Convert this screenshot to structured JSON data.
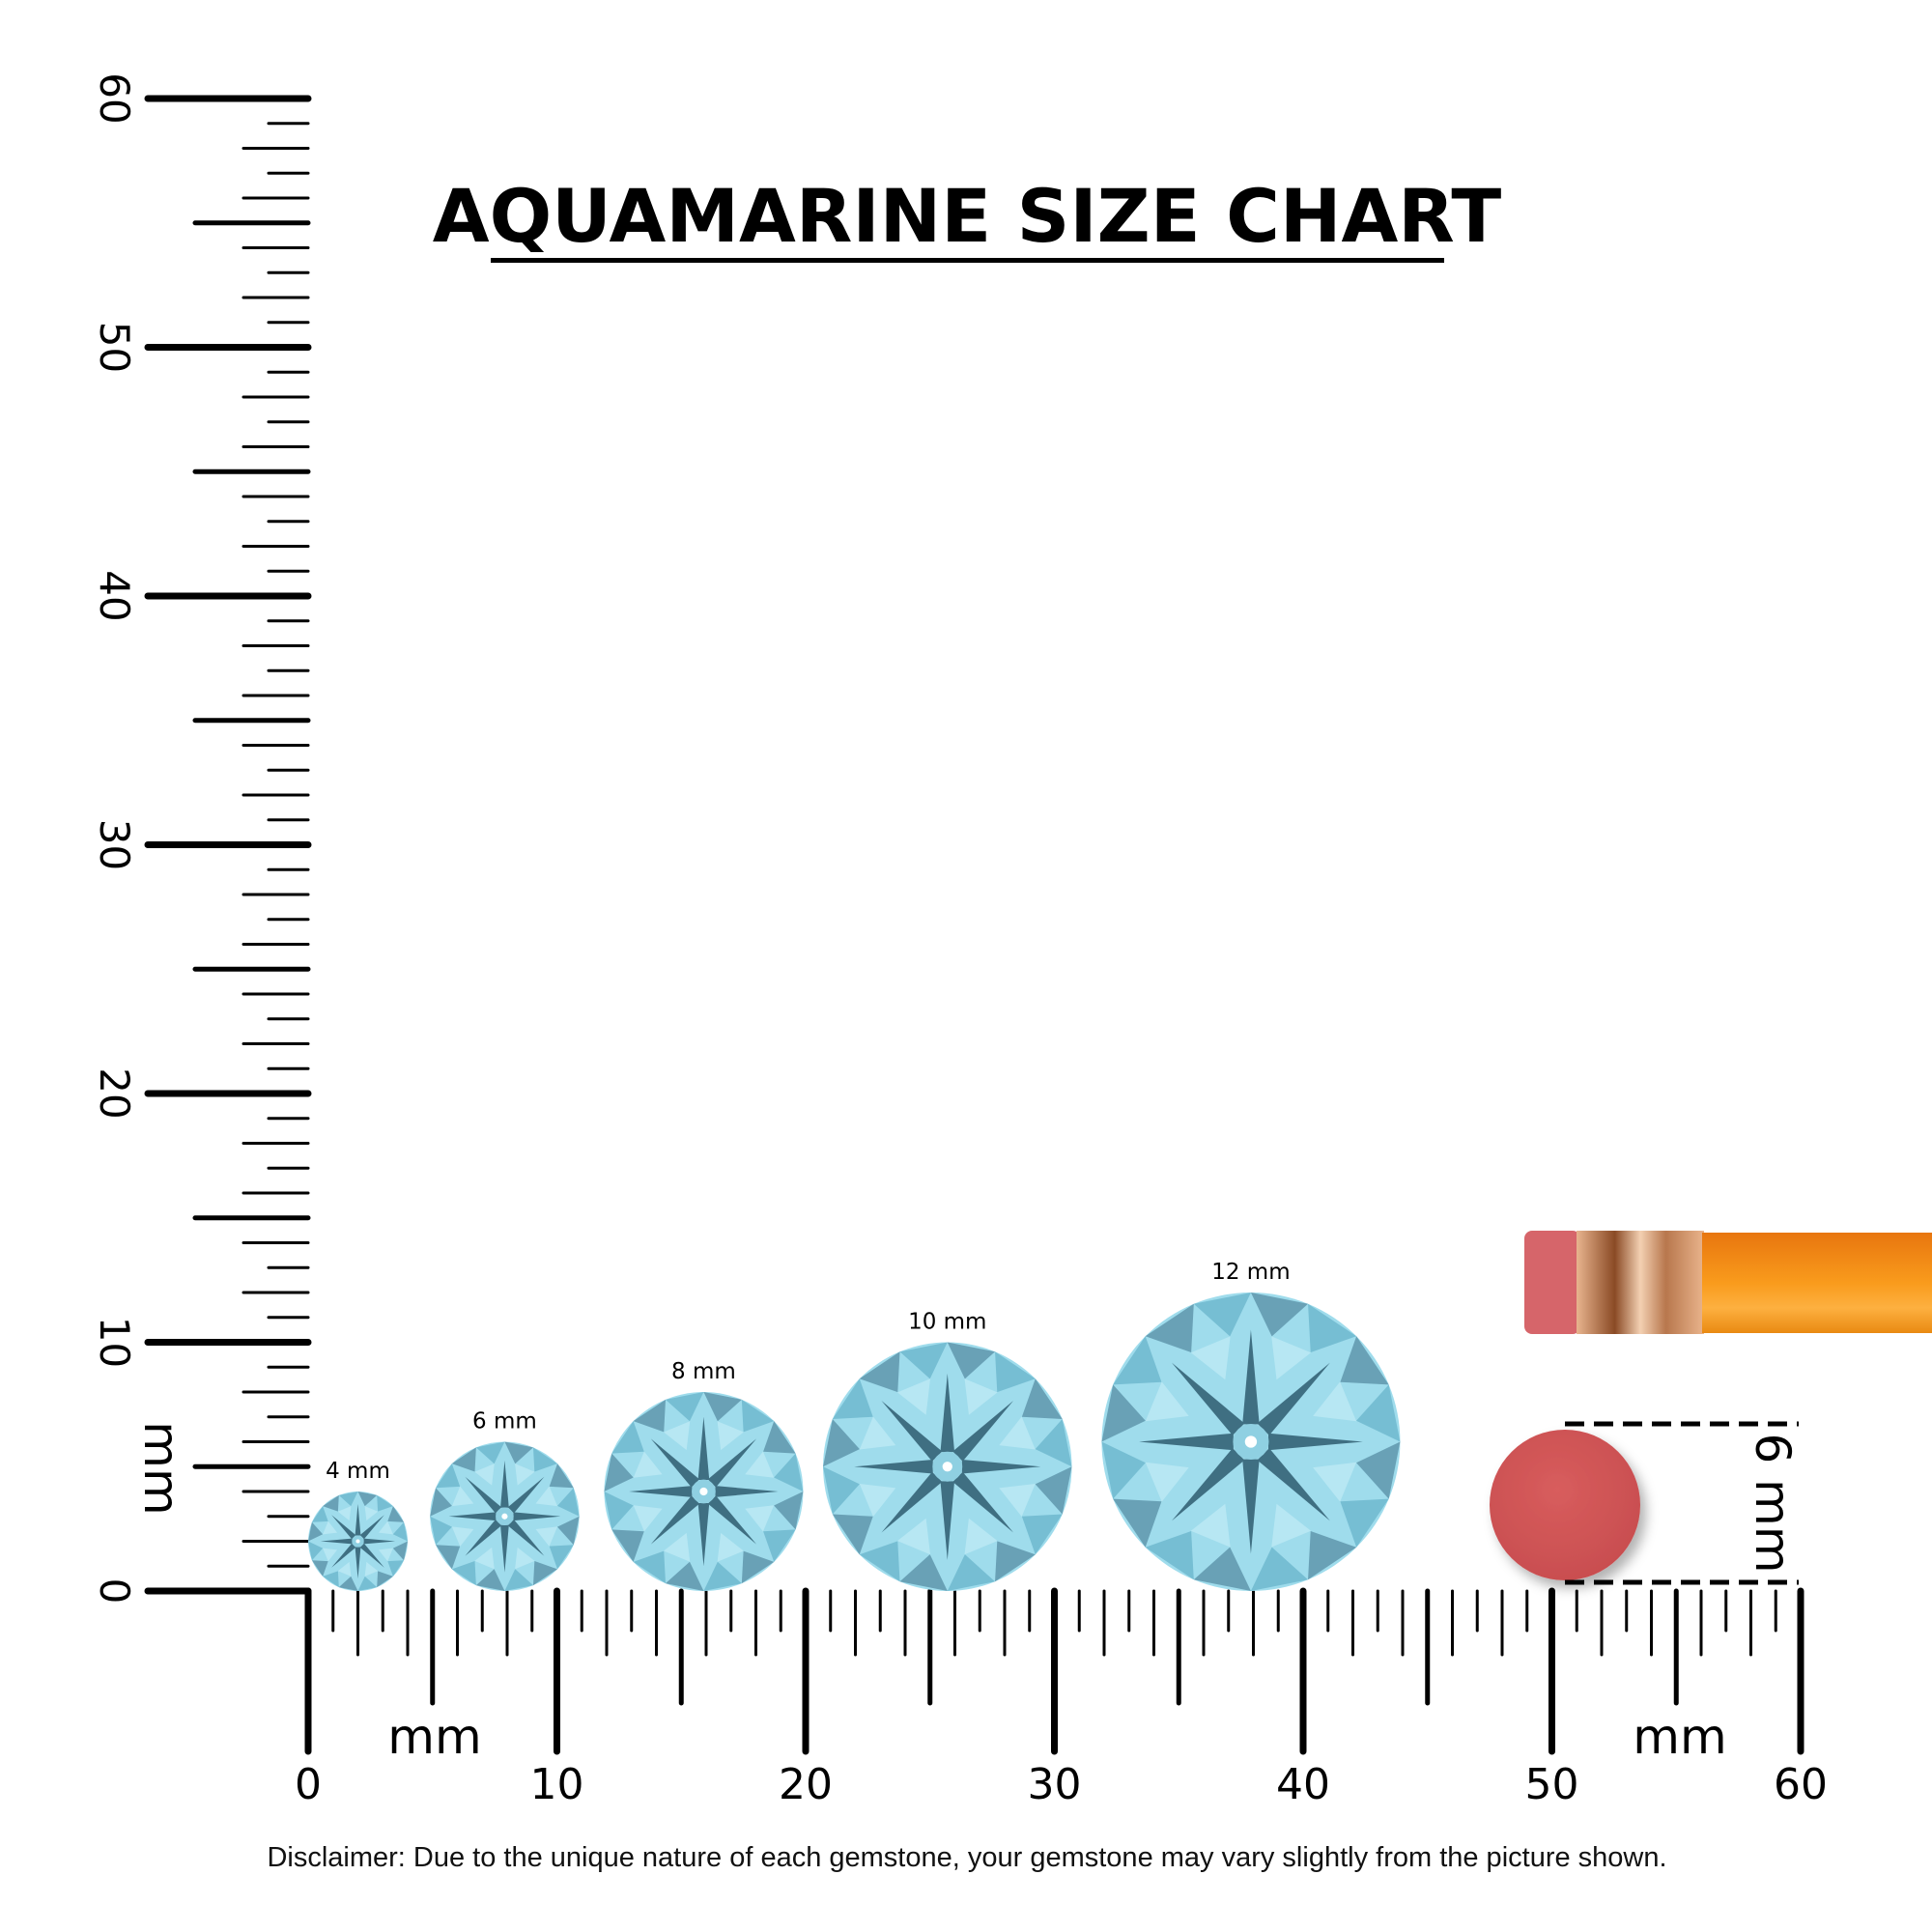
{
  "title": "AQUAMARINE SIZE CHART",
  "ruler": {
    "unit_label": "mm",
    "max_mm": 60,
    "x_tick_labels": [
      "0",
      "10",
      "20",
      "30",
      "40",
      "50",
      "60"
    ],
    "y_tick_labels": [
      "0",
      "10",
      "20",
      "30",
      "40",
      "50",
      "60"
    ]
  },
  "gems": [
    {
      "label": "4 mm",
      "size_mm": 4
    },
    {
      "label": "6 mm",
      "size_mm": 6
    },
    {
      "label": "8 mm",
      "size_mm": 8
    },
    {
      "label": "10 mm",
      "size_mm": 10
    },
    {
      "label": "12 mm",
      "size_mm": 12
    }
  ],
  "reference": {
    "label": "6 mm",
    "size_mm": 6,
    "object": "pencil eraser"
  },
  "colors": {
    "gem_light": "#9fdcec",
    "gem_mid": "#6fb8cf",
    "gem_dark": "#3f6f82",
    "eraser": "#d45b5b",
    "pencil_body": "#f7941d",
    "ferrule": "#d9a27a"
  },
  "disclaimer": "Disclaimer: Due to the unique nature of each gemstone, your gemstone may vary slightly from the picture shown."
}
